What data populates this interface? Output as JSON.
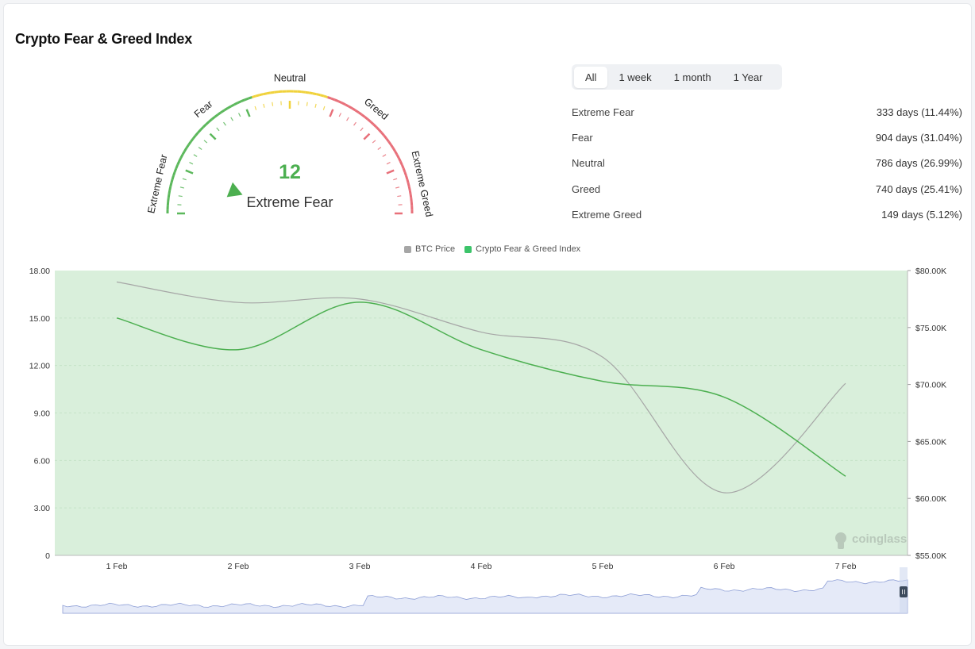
{
  "title": "Crypto Fear & Greed Index",
  "gauge": {
    "value": "12",
    "value_num": 12,
    "classification": "Extreme Fear",
    "zone_labels": [
      "Extreme Fear",
      "Fear",
      "Neutral",
      "Greed",
      "Extreme Greed"
    ],
    "colors": {
      "fear": "#5cb85c",
      "neutral": "#f0d23c",
      "greed": "#e8707a",
      "value": "#4caf50"
    }
  },
  "tabs": [
    {
      "label": "All",
      "active": true
    },
    {
      "label": "1 week",
      "active": false
    },
    {
      "label": "1 month",
      "active": false
    },
    {
      "label": "1 Year",
      "active": false
    }
  ],
  "stats": [
    {
      "label": "Extreme Fear",
      "value": "333 days (11.44%)"
    },
    {
      "label": "Fear",
      "value": "904 days (31.04%)"
    },
    {
      "label": "Neutral",
      "value": "786 days (26.99%)"
    },
    {
      "label": "Greed",
      "value": "740 days (25.41%)"
    },
    {
      "label": "Extreme Greed",
      "value": "149 days (5.12%)"
    }
  ],
  "watermark": "coinglass",
  "chart_data": {
    "type": "line",
    "categories": [
      "1 Feb",
      "2 Feb",
      "3 Feb",
      "4 Feb",
      "5 Feb",
      "6 Feb",
      "7 Feb"
    ],
    "series": [
      {
        "name": "BTC Price",
        "axis": "right",
        "color": "#a6a6a6",
        "values": [
          79000,
          77200,
          77500,
          74600,
          72400,
          60500,
          70100
        ]
      },
      {
        "name": "Crypto Fear & Greed Index",
        "axis": "left",
        "color": "#4caf50",
        "values": [
          15,
          13,
          16,
          13,
          11,
          10,
          5
        ]
      }
    ],
    "y_left": {
      "ticks": [
        "18.00",
        "15.00",
        "12.00",
        "9.00",
        "6.00",
        "3.00",
        "0"
      ],
      "ylim": [
        0,
        18
      ]
    },
    "y_right": {
      "ticks": [
        "$80.00K",
        "$75.00K",
        "$70.00K",
        "$65.00K",
        "$60.00K",
        "$55.00K"
      ],
      "ylim": [
        55000,
        80000
      ]
    },
    "background_color": "#d9efdb",
    "legend_position": "top-center",
    "grid": true
  }
}
